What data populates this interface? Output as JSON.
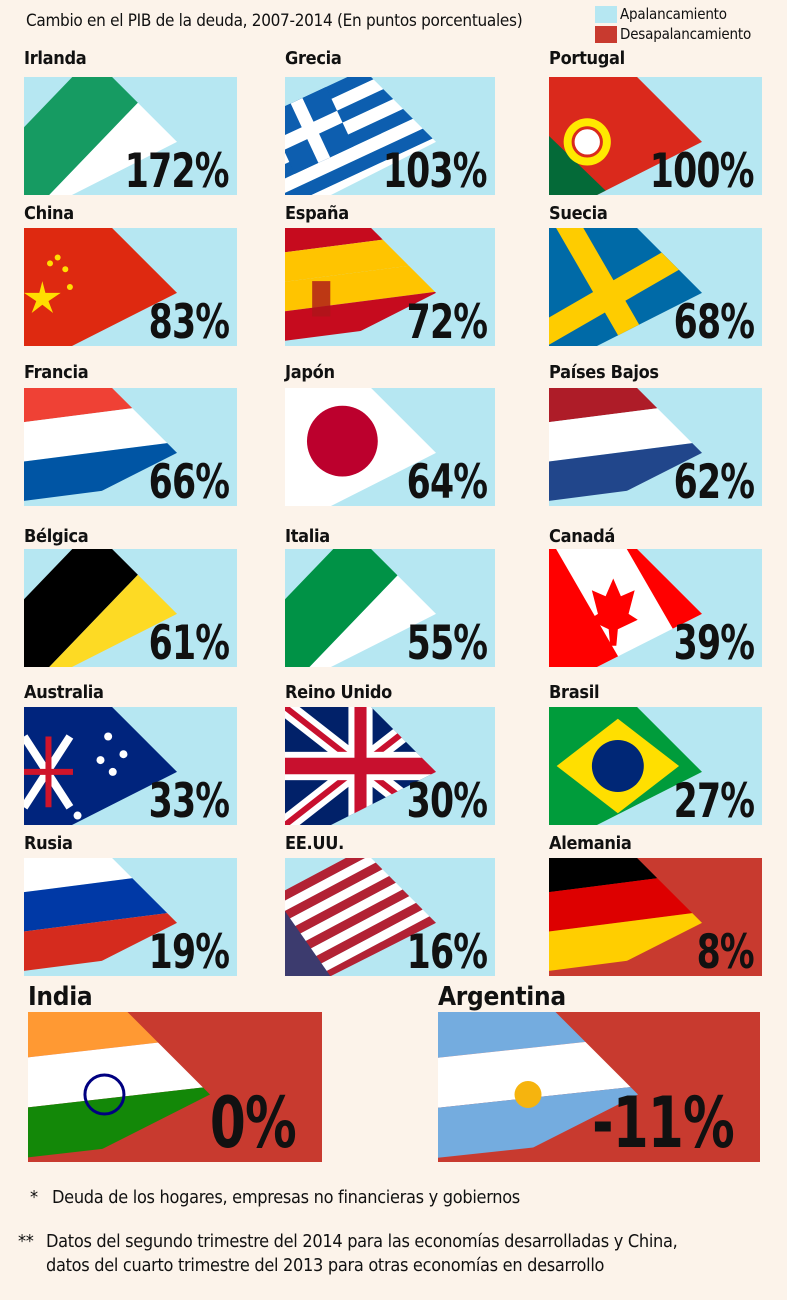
{
  "title": "Cambio en el PIB de la deuda, 2007-2014 (En puntos porcentuales)",
  "legend": [
    {
      "label": "Apalancamiento",
      "color": "#b6e7f2"
    },
    {
      "label": "Desapalancamiento",
      "color": "#c83a2f"
    }
  ],
  "chart_data": {
    "type": "bar",
    "title": "Cambio en el PIB de la deuda, 2007-2014 (En puntos porcentuales)",
    "unit": "%",
    "categories": [
      "Irlanda",
      "Grecia",
      "Portugal",
      "China",
      "España",
      "Suecia",
      "Francia",
      "Japón",
      "Países Bajos",
      "Bélgica",
      "Italia",
      "Canadá",
      "Australia",
      "Reino Unido",
      "Brasil",
      "Rusia",
      "EE.UU.",
      "Alemania",
      "India",
      "Argentina"
    ],
    "values": [
      172,
      103,
      100,
      83,
      72,
      68,
      66,
      64,
      62,
      61,
      55,
      39,
      33,
      30,
      27,
      19,
      16,
      8,
      0,
      -11
    ],
    "value_labels": [
      "172%",
      "103%",
      "100%",
      "83%",
      "72%",
      "68%",
      "66%",
      "64%",
      "62%",
      "61%",
      "55%",
      "39%",
      "33%",
      "30%",
      "27%",
      "19%",
      "16%",
      "8%",
      "0%",
      "-11%"
    ],
    "flag_icons": [
      "ireland-flag",
      "greece-flag",
      "portugal-flag",
      "china-flag",
      "spain-flag",
      "sweden-flag",
      "france-flag",
      "japan-flag",
      "netherlands-flag",
      "belgium-flag",
      "italy-flag",
      "canada-flag",
      "australia-flag",
      "uk-flag",
      "brazil-flag",
      "russia-flag",
      "usa-flag",
      "germany-flag",
      "india-flag",
      "argentina-flag"
    ],
    "box_colors": [
      "#b6e7f2",
      "#b6e7f2",
      "#b6e7f2",
      "#b6e7f2",
      "#b6e7f2",
      "#b6e7f2",
      "#b6e7f2",
      "#b6e7f2",
      "#b6e7f2",
      "#b6e7f2",
      "#b6e7f2",
      "#b6e7f2",
      "#b6e7f2",
      "#b6e7f2",
      "#b6e7f2",
      "#b6e7f2",
      "#b6e7f2",
      "#c83a2f",
      "#c83a2f",
      "#c83a2f"
    ]
  },
  "notes": [
    {
      "marker": "*",
      "text": "Deuda de los hogares, empresas no financieras y gobiernos"
    },
    {
      "marker": "**",
      "text": "Datos del segundo trimestre del 2014 para las economías desarrolladas y China,"
    },
    {
      "marker": "",
      "text": "datos del cuarto trimestre del 2013 para otras economías en desarrollo"
    }
  ]
}
